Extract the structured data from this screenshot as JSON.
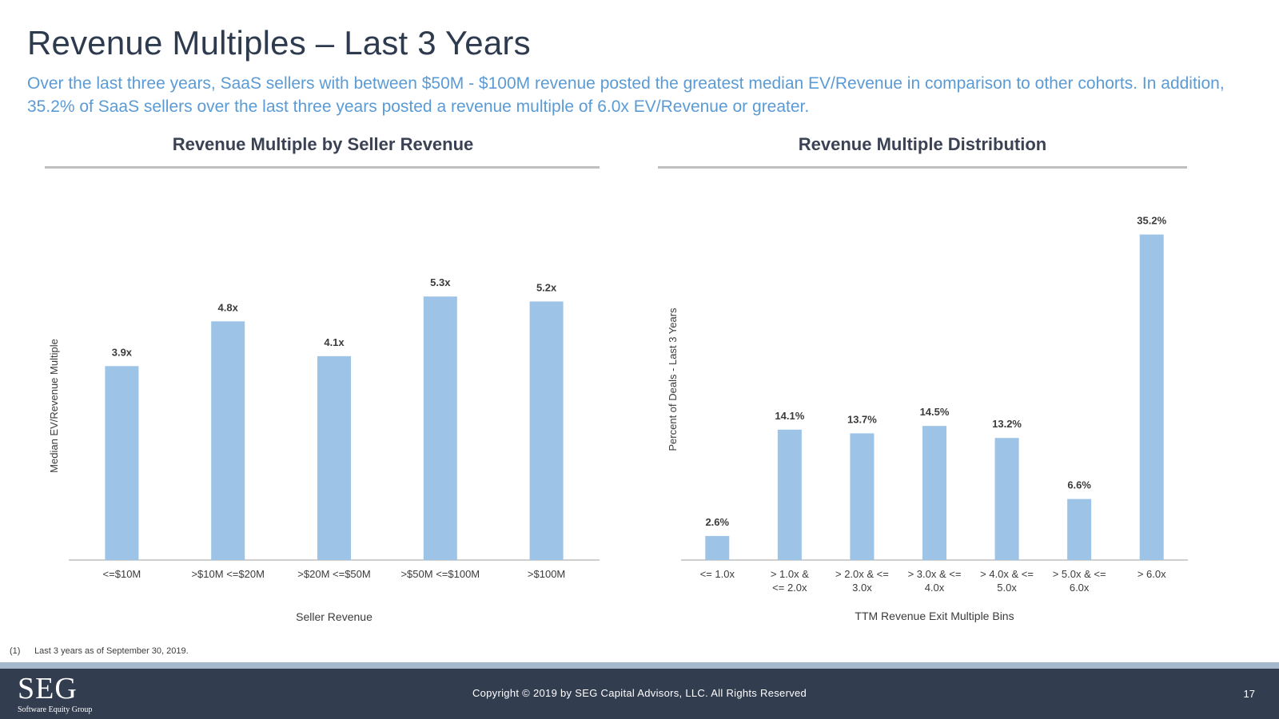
{
  "page": {
    "title": "Revenue Multiples – Last 3 Years",
    "subtitle": "Over the last three years, SaaS sellers with between $50M - $100M revenue posted the greatest median EV/Revenue in comparison to other cohorts. In addition, 35.2% of SaaS sellers over the last three years posted a revenue multiple of 6.0x EV/Revenue or greater.",
    "footnote_number": "(1)",
    "footnote": "Last 3 years as of September 30, 2019."
  },
  "footer": {
    "logo_main": "SEG",
    "logo_sub": "Software Equity Group",
    "copyright": "Copyright © 2019 by SEG Capital Advisors, LLC. All Rights Reserved",
    "page_number": "17"
  },
  "colors": {
    "bar": "#9dc3e6",
    "accent_text": "#5b9bd5",
    "footer_bg": "#333d50",
    "footer_stripe": "#a6b8cc"
  },
  "chart_data": [
    {
      "type": "bar",
      "title": "Revenue Multiple by Seller Revenue",
      "xlabel": "Seller Revenue",
      "ylabel": "Median EV/Revenue Multiple",
      "categories": [
        "<=$10M",
        ">$10M <=$20M",
        ">$20M <=$50M",
        ">$50M <=$100M",
        ">$100M"
      ],
      "values": [
        3.9,
        4.8,
        4.1,
        5.3,
        5.2
      ],
      "labels": [
        "3.9x",
        "4.8x",
        "4.1x",
        "5.3x",
        "5.2x"
      ],
      "ylim": [
        0,
        7.6
      ],
      "grid": false,
      "legend": "none"
    },
    {
      "type": "bar",
      "title": "Revenue Multiple Distribution",
      "xlabel": "TTM Revenue Exit Multiple Bins",
      "ylabel": "Percent of Deals - Last 3 Years",
      "categories": [
        [
          "<= 1.0x"
        ],
        [
          "> 1.0x   &",
          "<= 2.0x"
        ],
        [
          "> 2.0x & <=",
          "3.0x"
        ],
        [
          "> 3.0x & <=",
          "4.0x"
        ],
        [
          "> 4.0x & <=",
          "5.0x"
        ],
        [
          "> 5.0x & <=",
          "6.0x"
        ],
        [
          "> 6.0x"
        ]
      ],
      "values": [
        2.6,
        14.1,
        13.7,
        14.5,
        13.2,
        6.6,
        35.2
      ],
      "labels": [
        "2.6%",
        "14.1%",
        "13.7%",
        "14.5%",
        "13.2%",
        "6.6%",
        "35.2%"
      ],
      "ylim": [
        0,
        40
      ],
      "grid": false,
      "legend": "none"
    }
  ]
}
